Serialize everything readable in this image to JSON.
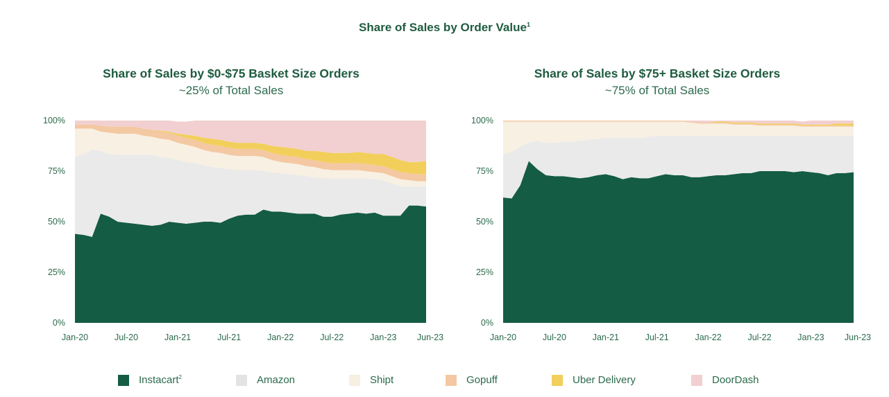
{
  "page_title": "Share of Sales by Order Value",
  "page_title_sup": "1",
  "colors": {
    "Instacart": "#145c43",
    "Amazon": "#eaeaea",
    "Shipt": "#f8f0e2",
    "Gopuff": "#f3c8a2",
    "Uber Delivery": "#f2cf5b",
    "DoorDash": "#f2cfd0"
  },
  "legend": [
    {
      "label": "Instacart",
      "sup": "2",
      "color": "#145c43"
    },
    {
      "label": "Amazon",
      "sup": "",
      "color": "#e3e3e3"
    },
    {
      "label": "Shipt",
      "sup": "",
      "color": "#f6efe2"
    },
    {
      "label": "Gopuff",
      "sup": "",
      "color": "#f3c8a2"
    },
    {
      "label": "Uber Delivery",
      "sup": "",
      "color": "#f2cf5b"
    },
    {
      "label": "DoorDash",
      "sup": "",
      "color": "#f2cfd0"
    }
  ],
  "chart_data": [
    {
      "type": "area",
      "stacked": true,
      "title": "Share of Sales by $0-$75 Basket Size Orders",
      "subtitle": "~25% of Total Sales",
      "ylim": [
        0,
        100
      ],
      "y_tick_labels": [
        "0%",
        "25%",
        "50%",
        "75%",
        "100%"
      ],
      "x_tick_labels": [
        "Jan-20",
        "Jul-20",
        "Jan-21",
        "Jul-21",
        "Jan-22",
        "Jul-22",
        "Jan-23",
        "Jun-23"
      ],
      "x_count": 42,
      "x_tick_index": [
        0,
        6,
        12,
        18,
        24,
        30,
        36,
        41
      ],
      "series": [
        {
          "name": "Instacart",
          "values": [
            44,
            43.5,
            42.5,
            54,
            52.5,
            50,
            49.5,
            49,
            48.5,
            48,
            48.5,
            50,
            49.5,
            49,
            49.5,
            50,
            50,
            49.5,
            51.5,
            53,
            53.5,
            53.5,
            56,
            55,
            55,
            54.5,
            54,
            54,
            54,
            52.5,
            52.5,
            53.5,
            54,
            54.5,
            54,
            54.5,
            53,
            53,
            53,
            58,
            58,
            57.5
          ]
        },
        {
          "name": "Amazon",
          "values": [
            38,
            40,
            43,
            31,
            31,
            33,
            33.5,
            34,
            34.5,
            35,
            33.5,
            31.5,
            31,
            30.5,
            29.5,
            28,
            27,
            27,
            24.5,
            22.5,
            22,
            22,
            19,
            19.5,
            19,
            19,
            19,
            18.5,
            18,
            19,
            19,
            18,
            17.5,
            17,
            17.5,
            16.5,
            17.5,
            16,
            14.5,
            9.5,
            9.5,
            10
          ]
        },
        {
          "name": "Shipt",
          "values": [
            14,
            12.5,
            10.5,
            9.5,
            10.5,
            10.5,
            10.5,
            10.5,
            9.5,
            9,
            9,
            9,
            8.5,
            8.5,
            8,
            7.5,
            7.5,
            7.5,
            7,
            7,
            7,
            7,
            7,
            6,
            5.5,
            5.5,
            5.5,
            5,
            5,
            4.5,
            4,
            4,
            4,
            4,
            3.5,
            3.5,
            3.5,
            3.5,
            3.5,
            3,
            2.5,
            2.5
          ]
        },
        {
          "name": "Gopuff",
          "values": [
            2,
            2,
            2,
            3,
            3,
            3.5,
            3.5,
            3.5,
            3.5,
            3.5,
            3.5,
            3.5,
            3.5,
            3.5,
            3.5,
            3.5,
            3.5,
            3.5,
            3.5,
            3.5,
            3.5,
            3.5,
            3.5,
            3.5,
            3.5,
            3.5,
            3.5,
            3.5,
            3.5,
            3.5,
            3.5,
            3.5,
            3.5,
            3.5,
            3.5,
            3.5,
            3.5,
            3.5,
            3.5,
            3.5,
            3.5,
            3.5
          ]
        },
        {
          "name": "Uber Delivery",
          "values": [
            0,
            0,
            0,
            0,
            0,
            0,
            0,
            0,
            0,
            0,
            0.5,
            0.5,
            1,
            1.5,
            2,
            2.5,
            3,
            3,
            3,
            3,
            3,
            3,
            3,
            3.5,
            4,
            4,
            4,
            4,
            4.5,
            5,
            5,
            5,
            5,
            5.5,
            5.5,
            5.5,
            6,
            6,
            6,
            5.5,
            6,
            6.5
          ]
        },
        {
          "name": "DoorDash",
          "values": [
            2,
            2,
            2,
            2.5,
            3,
            3,
            3,
            3,
            4,
            4.5,
            5,
            5.5,
            6,
            6.5,
            7.5,
            8.5,
            9,
            9.5,
            10.5,
            11,
            11,
            11,
            11.5,
            12.5,
            13,
            13.5,
            14,
            15,
            15,
            15.5,
            16,
            16,
            16,
            15.5,
            16,
            16.5,
            16.5,
            18,
            19.5,
            20.5,
            20.5,
            20
          ]
        }
      ]
    },
    {
      "type": "area",
      "stacked": true,
      "title": "Share of Sales by $75+ Basket Size Orders",
      "subtitle": "~75% of Total Sales",
      "ylim": [
        0,
        100
      ],
      "y_tick_labels": [
        "0%",
        "25%",
        "50%",
        "75%",
        "100%"
      ],
      "x_tick_labels": [
        "Jan-20",
        "Jul-20",
        "Jan-21",
        "Jul-21",
        "Jan-22",
        "Jul-22",
        "Jan-23",
        "Jun-23"
      ],
      "x_count": 42,
      "x_tick_index": [
        0,
        6,
        12,
        18,
        24,
        30,
        36,
        41
      ],
      "series": [
        {
          "name": "Instacart",
          "values": [
            62,
            61.5,
            68,
            80,
            76,
            73,
            72.5,
            72.5,
            72,
            71.5,
            72,
            73,
            73.5,
            72.5,
            71,
            72,
            71.5,
            71.5,
            72.5,
            73.5,
            73,
            73,
            72,
            72,
            72.5,
            73,
            73,
            73.5,
            74,
            74,
            75,
            75,
            75,
            75,
            74.5,
            75,
            74.5,
            74,
            73,
            74,
            74,
            74.5
          ]
        },
        {
          "name": "Amazon",
          "values": [
            21,
            23,
            19,
            9,
            14,
            16,
            16.5,
            17,
            17.5,
            18.5,
            18.5,
            18,
            18,
            19,
            20.5,
            19.5,
            20,
            20.5,
            20,
            19,
            19.5,
            19.5,
            20.5,
            20.5,
            20,
            19.5,
            19.5,
            19,
            18.5,
            18.5,
            17.5,
            17.5,
            17.5,
            17.5,
            18,
            17.5,
            18,
            18.5,
            19.5,
            18.5,
            18.5,
            18
          ]
        },
        {
          "name": "Shipt",
          "values": [
            16.5,
            15,
            12.5,
            10.5,
            9.5,
            10.5,
            10.5,
            10,
            10,
            9.5,
            9,
            8.5,
            8,
            8,
            8,
            8,
            8,
            7.5,
            7,
            7,
            7,
            7,
            6.5,
            6,
            6,
            6,
            6,
            5.5,
            5.5,
            5.5,
            5,
            5,
            5,
            5,
            5,
            4.5,
            4.5,
            4.5,
            4.5,
            4.5,
            4.5,
            4.5
          ]
        },
        {
          "name": "Gopuff",
          "values": [
            0.5,
            0.5,
            0.5,
            0.5,
            0.5,
            0.5,
            0.5,
            0.5,
            0.5,
            0.5,
            0.5,
            0.5,
            0.5,
            0.5,
            0.5,
            0.5,
            0.5,
            0.5,
            0.5,
            0.5,
            0.5,
            0.5,
            0.5,
            0.5,
            0.5,
            0.5,
            0.5,
            0.5,
            0.5,
            0.5,
            0.5,
            0.5,
            0.5,
            0.5,
            0.5,
            0.5,
            0.5,
            0.5,
            0.5,
            0.5,
            0.5,
            0.5
          ]
        },
        {
          "name": "Uber Delivery",
          "values": [
            0,
            0,
            0,
            0,
            0,
            0,
            0,
            0,
            0,
            0,
            0,
            0,
            0,
            0,
            0,
            0,
            0,
            0,
            0,
            0,
            0,
            0,
            0,
            0,
            0,
            0.5,
            0.5,
            0.5,
            0.5,
            0.5,
            0.5,
            0.5,
            0.5,
            0.5,
            0.5,
            0.5,
            0.5,
            0.5,
            0.5,
            1,
            1,
            1
          ]
        },
        {
          "name": "DoorDash",
          "values": [
            0,
            0,
            0,
            0,
            0,
            0,
            0,
            0,
            0,
            0,
            0,
            0,
            0,
            0,
            0,
            0,
            0,
            0,
            0,
            0,
            0,
            0,
            0.5,
            1,
            1,
            0.5,
            0.5,
            1,
            1,
            1,
            1.5,
            1.5,
            1.5,
            1.5,
            1.5,
            1.5,
            2,
            2,
            2,
            1.5,
            1.5,
            1.5
          ]
        }
      ]
    }
  ]
}
